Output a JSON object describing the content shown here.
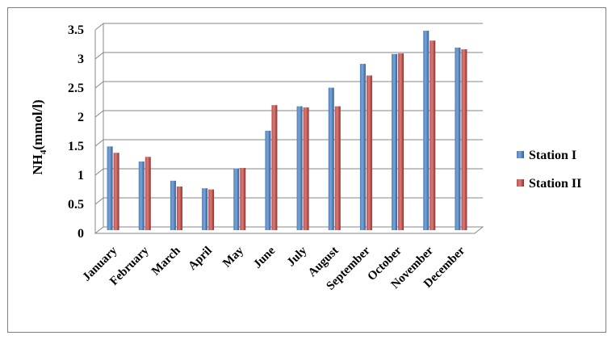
{
  "chart_data": {
    "type": "bar",
    "title": "",
    "xlabel": "",
    "ylabel": {
      "main": "NH",
      "subscript": "4",
      "suffix": "(mmol/l)"
    },
    "ylim": [
      0,
      3.5
    ],
    "yticks": [
      "0",
      "0.5",
      "1",
      "1.5",
      "2",
      "2.5",
      "3",
      "3.5"
    ],
    "ytick_values": [
      0,
      0.5,
      1,
      1.5,
      2,
      2.5,
      3,
      3.5
    ],
    "grid": true,
    "legend_position": "right",
    "categories": [
      "January",
      "February",
      "March",
      "April",
      "May",
      "June",
      "July",
      "August",
      "September",
      "October",
      "November",
      "December"
    ],
    "series": [
      {
        "name": "Station I",
        "color": "#4f81bd",
        "values": [
          1.44,
          1.18,
          0.85,
          0.72,
          1.06,
          1.71,
          2.13,
          2.45,
          2.86,
          3.03,
          3.43,
          3.14
        ]
      },
      {
        "name": "Station II",
        "color": "#c0504d",
        "values": [
          1.33,
          1.26,
          0.75,
          0.7,
          1.07,
          2.15,
          2.11,
          2.13,
          2.66,
          3.04,
          3.26,
          3.11
        ]
      }
    ]
  }
}
